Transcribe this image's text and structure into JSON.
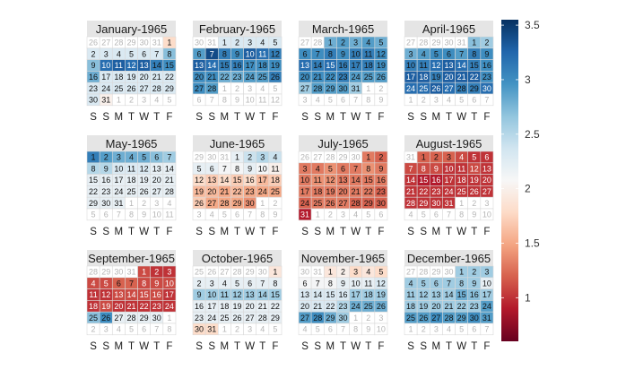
{
  "chart_data": {
    "type": "heatmap",
    "year": 1965,
    "week_start": "Saturday",
    "weekday_labels": [
      "S",
      "S",
      "M",
      "T",
      "W",
      "T",
      "F"
    ],
    "months": [
      {
        "title": "January-1965",
        "values": [
          1.8,
          2.3,
          2.3,
          2.3,
          2.3,
          2.3,
          2.3,
          2.7,
          2.7,
          3.2,
          3.3,
          3.2,
          3.3,
          3.1,
          3.0,
          2.8,
          2.3,
          2.3,
          2.3,
          2.3,
          2.3,
          2.3,
          2.3,
          2.3,
          2.3,
          2.3,
          2.3,
          2.3,
          2.3,
          2.3,
          2.0
        ]
      },
      {
        "title": "February-1965",
        "values": [
          2.3,
          2.3,
          2.3,
          2.3,
          2.3,
          2.9,
          3.4,
          3.1,
          3.0,
          3.3,
          3.2,
          3.1,
          3.3,
          3.2,
          3.1,
          3.1,
          3.0,
          3.0,
          3.0,
          3.0,
          3.0,
          2.8,
          2.8,
          2.9,
          2.9,
          3.1,
          3.0,
          2.9
        ]
      },
      {
        "title": "March-1965",
        "values": [
          2.8,
          2.9,
          2.8,
          2.9,
          2.8,
          3.0,
          3.0,
          3.1,
          3.0,
          3.1,
          3.1,
          3.0,
          3.2,
          3.1,
          3.2,
          3.1,
          3.1,
          3.1,
          3.0,
          3.0,
          3.0,
          3.0,
          3.1,
          2.9,
          2.9,
          2.9,
          2.6,
          2.9,
          2.9,
          2.9,
          2.6
        ]
      },
      {
        "title": "April-1965",
        "values": [
          2.7,
          2.6,
          2.8,
          2.9,
          3.0,
          3.0,
          2.9,
          3.1,
          3.0,
          3.1,
          3.1,
          3.2,
          3.3,
          3.2,
          3.1,
          3.0,
          3.3,
          3.3,
          3.1,
          3.3,
          3.3,
          3.3,
          3.0,
          3.2,
          3.2,
          3.3,
          3.2,
          3.1,
          3.1,
          3.2
        ]
      },
      {
        "title": "May-1965",
        "values": [
          3.1,
          2.9,
          2.8,
          2.8,
          2.8,
          2.7,
          2.6,
          2.5,
          2.5,
          2.3,
          2.3,
          2.3,
          2.2,
          2.2,
          2.2,
          2.2,
          2.2,
          2.2,
          2.2,
          2.2,
          2.2,
          2.2,
          2.2,
          2.2,
          2.2,
          2.2,
          2.2,
          2.2,
          2.2,
          2.2,
          2.2
        ]
      },
      {
        "title": "June-1965",
        "values": [
          2.2,
          2.4,
          2.5,
          2.4,
          2.2,
          2.2,
          2.1,
          2.1,
          2.2,
          2.1,
          2.0,
          1.8,
          1.7,
          1.8,
          1.7,
          1.8,
          1.6,
          1.7,
          1.6,
          1.6,
          1.5,
          1.6,
          1.5,
          1.5,
          1.5,
          1.7,
          1.5,
          1.5,
          1.5,
          1.4
        ]
      },
      {
        "title": "July-1965",
        "values": [
          1.3,
          1.2,
          1.3,
          1.3,
          1.4,
          1.3,
          1.3,
          1.4,
          1.3,
          1.3,
          1.4,
          1.4,
          1.3,
          1.3,
          1.3,
          1.3,
          1.3,
          1.3,
          1.3,
          1.3,
          1.3,
          1.3,
          1.2,
          1.2,
          1.3,
          1.3,
          1.3,
          1.2,
          1.2,
          1.2,
          0.9
        ]
      },
      {
        "title": "August-1965",
        "values": [
          1.2,
          1.2,
          1.2,
          1.1,
          1.0,
          1.0,
          1.1,
          1.1,
          1.1,
          1.0,
          1.0,
          1.1,
          1.0,
          1.0,
          0.9,
          0.9,
          1.0,
          1.0,
          1.0,
          1.0,
          1.0,
          1.0,
          1.0,
          1.0,
          1.0,
          1.0,
          1.0,
          1.0,
          1.0,
          1.0,
          1.0
        ]
      },
      {
        "title": "September-1965",
        "values": [
          1.1,
          1.0,
          1.0,
          1.1,
          1.1,
          1.2,
          1.2,
          1.1,
          1.1,
          1.1,
          1.0,
          1.0,
          1.1,
          1.1,
          1.1,
          1.1,
          1.0,
          1.0,
          1.1,
          1.0,
          1.0,
          1.0,
          1.0,
          1.0,
          2.7,
          3.0,
          2.2,
          2.2,
          2.2,
          2.2
        ]
      },
      {
        "title": "October-1965",
        "values": [
          1.9,
          2.2,
          2.2,
          2.2,
          2.2,
          2.2,
          2.2,
          2.2,
          2.6,
          2.6,
          2.6,
          2.6,
          2.6,
          2.6,
          2.6,
          2.2,
          2.2,
          2.2,
          2.2,
          2.2,
          2.2,
          2.2,
          2.2,
          2.2,
          2.2,
          2.2,
          2.2,
          2.2,
          2.2,
          1.8,
          1.8
        ]
      },
      {
        "title": "November-1965",
        "values": [
          1.9,
          2.0,
          1.8,
          1.9,
          1.8,
          2.1,
          2.1,
          2.1,
          2.2,
          2.2,
          2.2,
          2.3,
          2.3,
          2.3,
          2.3,
          2.3,
          2.6,
          2.6,
          2.6,
          2.3,
          2.3,
          2.3,
          2.5,
          2.8,
          2.8,
          2.8,
          2.9,
          3.0,
          2.8,
          2.6
        ]
      },
      {
        "title": "December-1965",
        "values": [
          2.6,
          2.6,
          2.6,
          2.6,
          2.6,
          2.6,
          2.6,
          2.6,
          2.6,
          2.2,
          2.6,
          2.6,
          2.6,
          2.6,
          2.8,
          2.7,
          2.6,
          2.6,
          2.6,
          2.6,
          2.6,
          2.6,
          2.6,
          2.9,
          2.9,
          2.9,
          3.0,
          2.9,
          2.9,
          3.0,
          2.9
        ]
      }
    ],
    "colorbar": {
      "range": [
        0.6,
        3.55
      ],
      "ticks": [
        1,
        1.5,
        2,
        2.5,
        3,
        3.5
      ],
      "tick_labels": [
        "1",
        "1.5",
        "2",
        "2.5",
        "3",
        "3.5"
      ],
      "colors": [
        "#67001f",
        "#b2182b",
        "#d6604d",
        "#f4a582",
        "#fddbc7",
        "#f7f7f7",
        "#d1e5f0",
        "#92c5de",
        "#4393c3",
        "#2166ac",
        "#053061"
      ]
    },
    "title": "",
    "xlabel": "",
    "ylabel": ""
  }
}
